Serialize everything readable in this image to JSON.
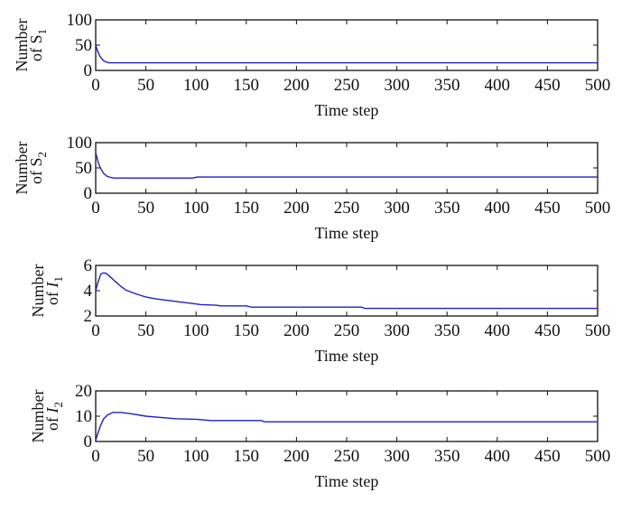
{
  "chart_data": [
    {
      "type": "line",
      "xlabel": "Time step",
      "ylabel": {
        "line1": "Number",
        "prefix": "of ",
        "var": "S",
        "sub": "1",
        "italic": false
      },
      "xlim": [
        0,
        500
      ],
      "ylim": [
        0,
        100
      ],
      "xticks": [
        0,
        50,
        100,
        150,
        200,
        250,
        300,
        350,
        400,
        450,
        500
      ],
      "yticks": [
        0,
        50,
        100
      ],
      "color": "#2020c0",
      "points": [
        [
          0,
          50
        ],
        [
          2,
          38
        ],
        [
          4,
          29
        ],
        [
          6,
          23
        ],
        [
          8,
          19
        ],
        [
          10,
          17
        ],
        [
          13,
          15
        ],
        [
          20,
          15
        ],
        [
          500,
          15
        ]
      ]
    },
    {
      "type": "line",
      "xlabel": "Time step",
      "ylabel": {
        "line1": "Number",
        "prefix": "of ",
        "var": "S",
        "sub": "2",
        "italic": false
      },
      "xlim": [
        0,
        500
      ],
      "ylim": [
        0,
        100
      ],
      "xticks": [
        0,
        50,
        100,
        150,
        200,
        250,
        300,
        350,
        400,
        450,
        500
      ],
      "yticks": [
        0,
        50,
        100
      ],
      "color": "#2020c0",
      "points": [
        [
          0,
          80
        ],
        [
          2,
          65
        ],
        [
          4,
          53
        ],
        [
          6,
          45
        ],
        [
          8,
          39
        ],
        [
          11,
          34
        ],
        [
          15,
          31
        ],
        [
          18,
          30
        ],
        [
          97,
          30
        ],
        [
          101,
          32
        ],
        [
          500,
          32
        ]
      ]
    },
    {
      "type": "line",
      "xlabel": "Time step",
      "ylabel": {
        "line1": "Number",
        "prefix": "of ",
        "var": "I",
        "sub": "1",
        "italic": true
      },
      "xlim": [
        0,
        500
      ],
      "ylim": [
        2,
        6
      ],
      "xticks": [
        0,
        50,
        100,
        150,
        200,
        250,
        300,
        350,
        400,
        450,
        500
      ],
      "yticks": [
        2,
        4,
        6
      ],
      "color": "#2020c0",
      "points": [
        [
          0,
          4.0
        ],
        [
          2,
          4.6
        ],
        [
          5,
          5.3
        ],
        [
          7,
          5.4
        ],
        [
          10,
          5.4
        ],
        [
          13,
          5.2
        ],
        [
          20,
          4.7
        ],
        [
          25,
          4.35
        ],
        [
          30,
          4.05
        ],
        [
          40,
          3.75
        ],
        [
          50,
          3.5
        ],
        [
          60,
          3.35
        ],
        [
          75,
          3.2
        ],
        [
          90,
          3.05
        ],
        [
          100,
          2.95
        ],
        [
          105,
          2.9
        ],
        [
          120,
          2.85
        ],
        [
          125,
          2.8
        ],
        [
          150,
          2.8
        ],
        [
          155,
          2.7
        ],
        [
          265,
          2.7
        ],
        [
          268,
          2.6
        ],
        [
          500,
          2.6
        ]
      ]
    },
    {
      "type": "line",
      "xlabel": "Time step",
      "ylabel": {
        "line1": "Number",
        "prefix": "of ",
        "var": "I",
        "sub": "2",
        "italic": true
      },
      "xlim": [
        0,
        500
      ],
      "ylim": [
        0,
        20
      ],
      "xticks": [
        0,
        50,
        100,
        150,
        200,
        250,
        300,
        350,
        400,
        450,
        500
      ],
      "yticks": [
        0,
        10,
        20
      ],
      "color": "#2020c0",
      "points": [
        [
          0,
          0.5
        ],
        [
          2,
          3
        ],
        [
          5,
          6.5
        ],
        [
          8,
          9
        ],
        [
          12,
          10.5
        ],
        [
          17,
          11.5
        ],
        [
          25,
          11.5
        ],
        [
          35,
          11
        ],
        [
          50,
          10
        ],
        [
          65,
          9.5
        ],
        [
          80,
          9
        ],
        [
          100,
          8.8
        ],
        [
          115,
          8.3
        ],
        [
          165,
          8.3
        ],
        [
          168,
          7.8
        ],
        [
          500,
          7.8
        ]
      ]
    }
  ]
}
